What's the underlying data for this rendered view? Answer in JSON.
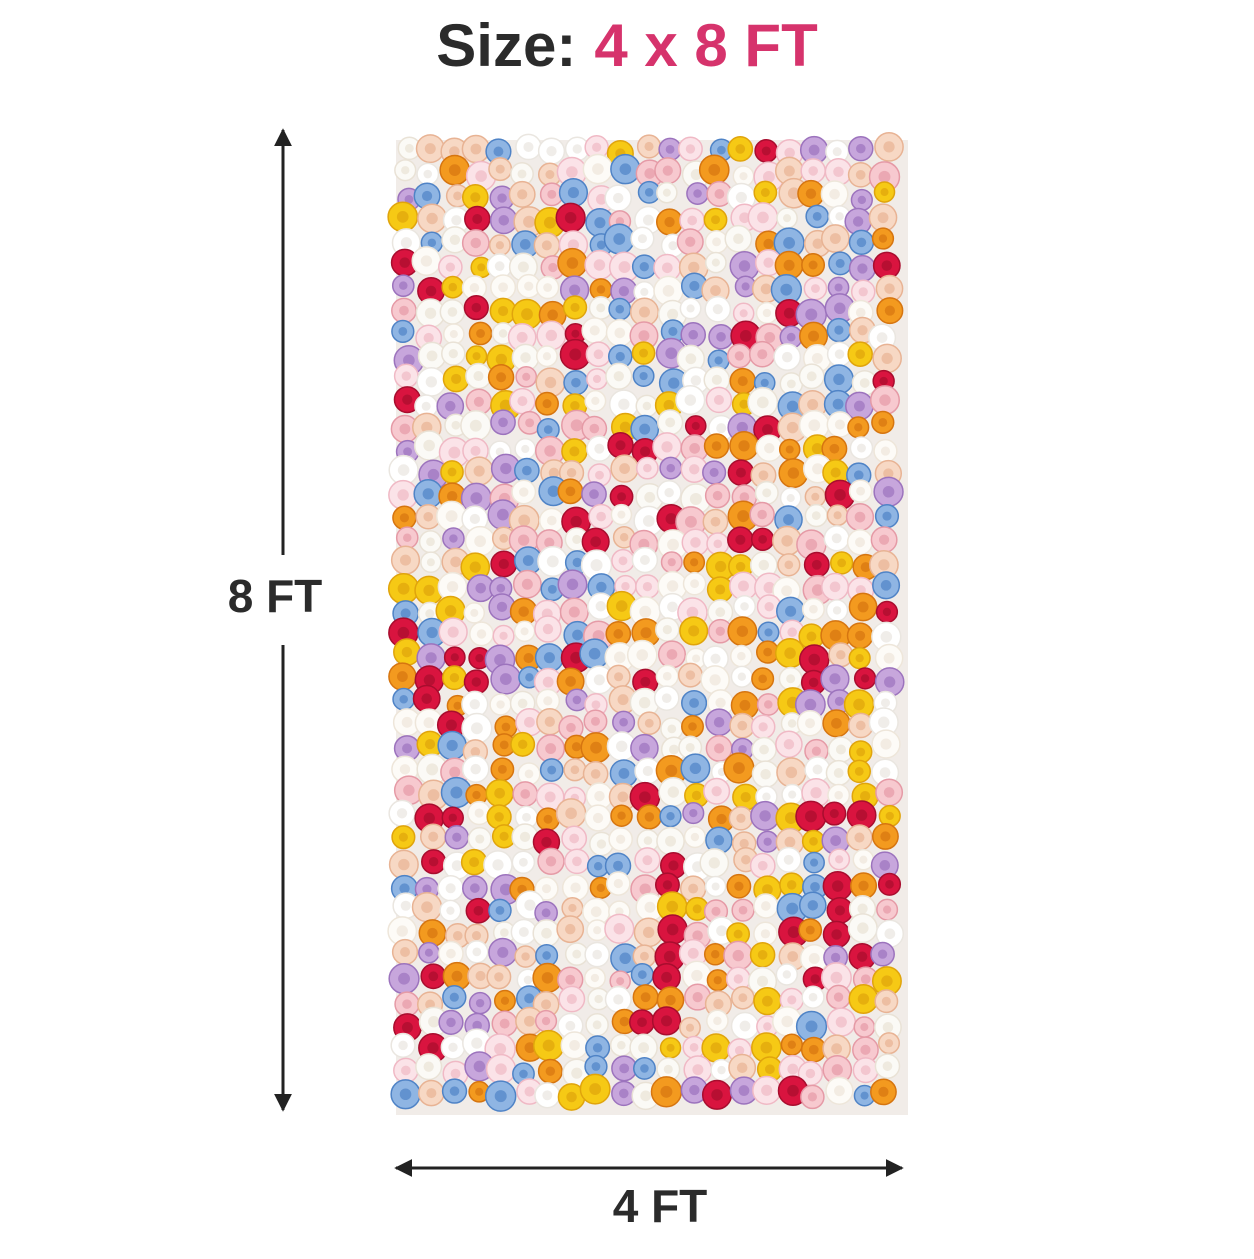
{
  "header": {
    "label": "Size:",
    "value": "4 x 8 FT"
  },
  "dimensions": {
    "height": "8 FT",
    "width": "4 FT"
  }
}
